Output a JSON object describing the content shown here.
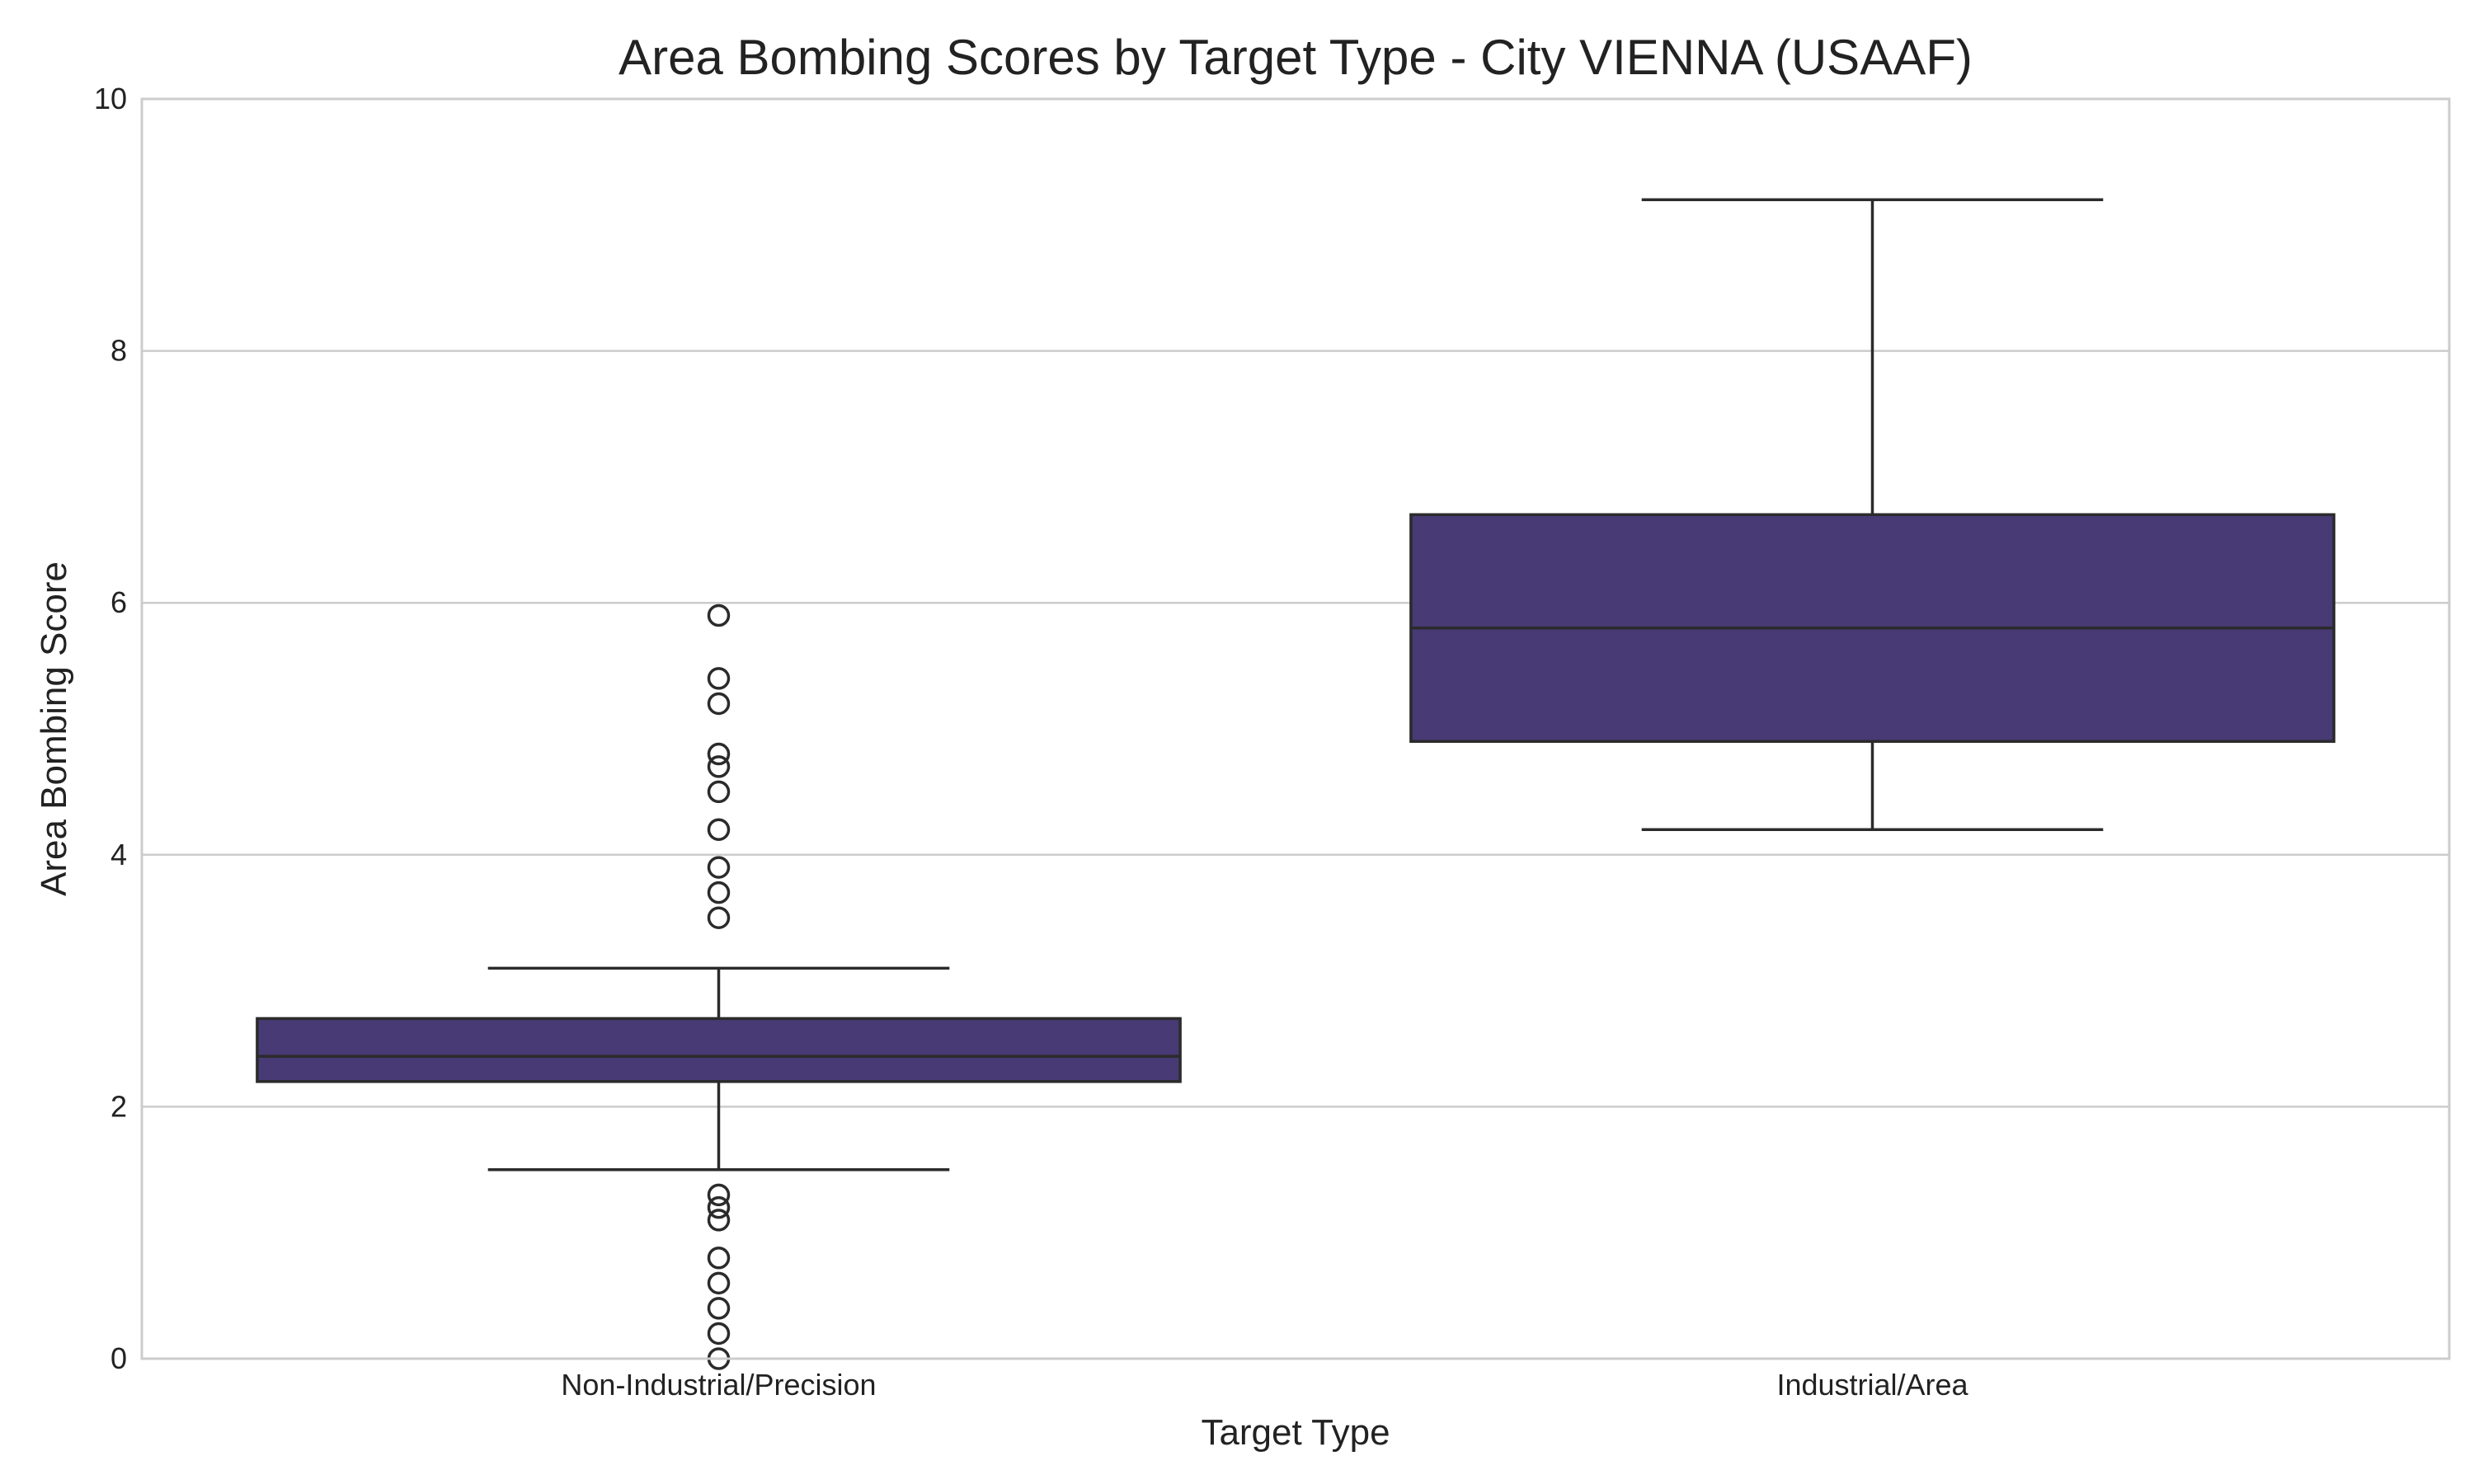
{
  "chart_data": {
    "type": "box",
    "title": "Area Bombing Scores by Target Type - City VIENNA (USAAF)",
    "xlabel": "Target Type",
    "ylabel": "Area Bombing Score",
    "ylim": [
      0,
      10
    ],
    "yticks": [
      "0",
      "2",
      "4",
      "6",
      "8",
      "10"
    ],
    "grid": "horizontal",
    "box_color": "#483a74",
    "categories": [
      "Non-Industrial/Precision",
      "Industrial/Area"
    ],
    "boxes": [
      {
        "category": "Non-Industrial/Precision",
        "whisker_low": 1.5,
        "q1": 2.2,
        "median": 2.4,
        "q3": 2.7,
        "whisker_high": 3.1,
        "outliers": [
          5.9,
          5.4,
          5.2,
          4.8,
          4.7,
          4.5,
          4.2,
          3.9,
          3.7,
          3.5,
          1.3,
          1.2,
          1.1,
          0.8,
          0.6,
          0.4,
          0.2,
          0.0
        ]
      },
      {
        "category": "Industrial/Area",
        "whisker_low": 4.2,
        "q1": 4.9,
        "median": 5.8,
        "q3": 6.7,
        "whisker_high": 9.2,
        "outliers": []
      }
    ]
  }
}
